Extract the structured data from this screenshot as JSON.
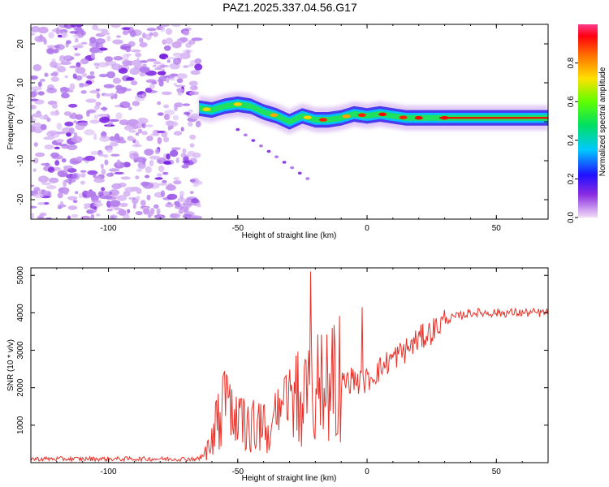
{
  "chart_data": [
    {
      "type": "heatmap",
      "title": "PAZ1.2025.337.04.56.G17",
      "xlabel": "Height of straight line (km)",
      "ylabel": "Frequency (Hz)",
      "xlim": [
        -130,
        70
      ],
      "ylim": [
        -25,
        25
      ],
      "xticks": [
        -100,
        -50,
        0,
        50
      ],
      "yticks": [
        -20,
        -10,
        0,
        10,
        20
      ],
      "noise_region_x": [
        -130,
        -65
      ],
      "signal_track": {
        "x": [
          -65,
          -60,
          -55,
          -50,
          -45,
          -40,
          -35,
          -30,
          -25,
          -20,
          -15,
          -10,
          -5,
          0,
          5,
          10,
          15,
          20,
          25,
          30,
          40,
          50,
          60,
          70
        ],
        "freq": [
          3.5,
          3,
          4,
          4.5,
          4,
          2.5,
          1.5,
          0,
          1.5,
          0.5,
          0.5,
          1,
          2,
          1.5,
          2,
          1.5,
          1,
          1,
          1,
          1,
          1,
          1,
          1,
          1
        ]
      },
      "colorbar": {
        "label": "Normalized spectral amplitude",
        "range": [
          0,
          1
        ],
        "ticks": [
          0.0,
          0.2,
          0.4,
          0.6,
          0.8
        ]
      }
    },
    {
      "type": "line",
      "xlabel": "Height of straight line (km)",
      "ylabel": "SNR (10 * v/v)",
      "xlim": [
        -130,
        70
      ],
      "ylim": [
        0,
        5200
      ],
      "xticks": [
        -100,
        -50,
        0,
        50
      ],
      "yticks": [
        1000,
        2000,
        3000,
        4000,
        5000
      ],
      "color": "#e8322a",
      "series": {
        "name": "SNR",
        "x": [
          -130,
          -65,
          -62,
          -60,
          -55,
          -52,
          -50,
          -45,
          -40,
          -35,
          -30,
          -25,
          -22,
          -20,
          -15,
          -10,
          -5,
          -2,
          0,
          5,
          10,
          15,
          20,
          25,
          30,
          35,
          40,
          50,
          60,
          70
        ],
        "y": [
          100,
          100,
          250,
          650,
          1300,
          1000,
          900,
          900,
          800,
          1000,
          1300,
          1700,
          1550,
          1800,
          1800,
          2100,
          2250,
          2100,
          2200,
          2500,
          2800,
          3000,
          3300,
          3500,
          3800,
          3900,
          4000,
          4000,
          4000,
          4000
        ],
        "spikes": [
          {
            "x": -22,
            "y": 5100
          },
          {
            "x": -2,
            "y": 4150
          }
        ]
      }
    }
  ]
}
